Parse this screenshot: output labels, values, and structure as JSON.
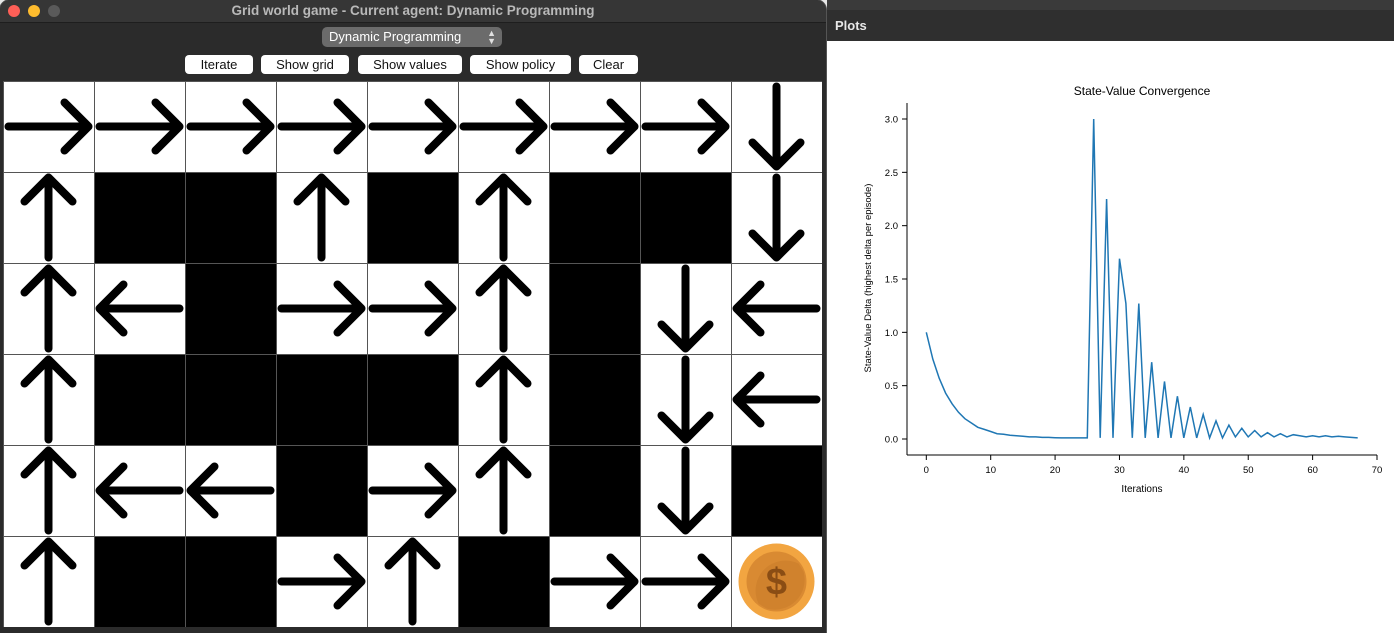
{
  "window": {
    "title": "Grid world game - Current agent: Dynamic Programming"
  },
  "agent_select": {
    "value": "Dynamic Programming"
  },
  "buttons": {
    "iterate": "Iterate",
    "show_grid": "Show grid",
    "show_values": "Show values",
    "show_policy": "Show policy",
    "clear": "Clear"
  },
  "grid": {
    "rows": [
      [
        "right",
        "right",
        "right",
        "right",
        "right",
        "right",
        "right",
        "right",
        "down"
      ],
      [
        "up",
        "wall",
        "wall",
        "up",
        "wall",
        "up",
        "wall",
        "wall",
        "down"
      ],
      [
        "up",
        "left",
        "wall",
        "right",
        "right",
        "up",
        "wall",
        "down",
        "left"
      ],
      [
        "up",
        "wall",
        "wall",
        "wall",
        "wall",
        "up",
        "wall",
        "down",
        "left"
      ],
      [
        "up",
        "left",
        "left",
        "wall",
        "right",
        "up",
        "wall",
        "down",
        "wall"
      ],
      [
        "up",
        "wall",
        "wall",
        "right",
        "up",
        "wall",
        "right",
        "right",
        "goal"
      ]
    ],
    "goal_symbol": "$"
  },
  "plots": {
    "header": "Plots"
  },
  "chart_data": {
    "type": "line",
    "title": "State-Value Convergence",
    "xlabel": "Iterations",
    "ylabel": "State-Value Delta (highest delta per episode)",
    "xlim": [
      -3,
      70
    ],
    "ylim": [
      -0.15,
      3.15
    ],
    "xticks": [
      0,
      10,
      20,
      30,
      40,
      50,
      60,
      70
    ],
    "yticks": [
      0.0,
      0.5,
      1.0,
      1.5,
      2.0,
      2.5,
      3.0
    ],
    "line_color": "#1f77b4",
    "x": [
      0,
      1,
      2,
      3,
      4,
      5,
      6,
      7,
      8,
      9,
      10,
      11,
      12,
      13,
      14,
      15,
      16,
      17,
      18,
      19,
      20,
      21,
      22,
      23,
      24,
      25,
      26,
      27,
      28,
      29,
      30,
      31,
      32,
      33,
      34,
      35,
      36,
      37,
      38,
      39,
      40,
      41,
      42,
      43,
      44,
      45,
      46,
      47,
      48,
      49,
      50,
      51,
      52,
      53,
      54,
      55,
      56,
      57,
      58,
      59,
      60,
      61,
      62,
      63,
      64,
      65,
      66,
      67
    ],
    "y": [
      1.0,
      0.75,
      0.57,
      0.43,
      0.33,
      0.25,
      0.19,
      0.15,
      0.11,
      0.09,
      0.07,
      0.05,
      0.045,
      0.035,
      0.03,
      0.025,
      0.02,
      0.02,
      0.015,
      0.015,
      0.012,
      0.01,
      0.01,
      0.01,
      0.01,
      0.01,
      3.0,
      0.01,
      2.25,
      0.01,
      1.69,
      1.27,
      0.01,
      1.27,
      0.01,
      0.72,
      0.01,
      0.54,
      0.01,
      0.4,
      0.01,
      0.3,
      0.01,
      0.23,
      0.01,
      0.17,
      0.01,
      0.13,
      0.02,
      0.1,
      0.02,
      0.08,
      0.02,
      0.06,
      0.02,
      0.05,
      0.02,
      0.04,
      0.03,
      0.02,
      0.03,
      0.02,
      0.03,
      0.02,
      0.025,
      0.02,
      0.015,
      0.01
    ]
  }
}
